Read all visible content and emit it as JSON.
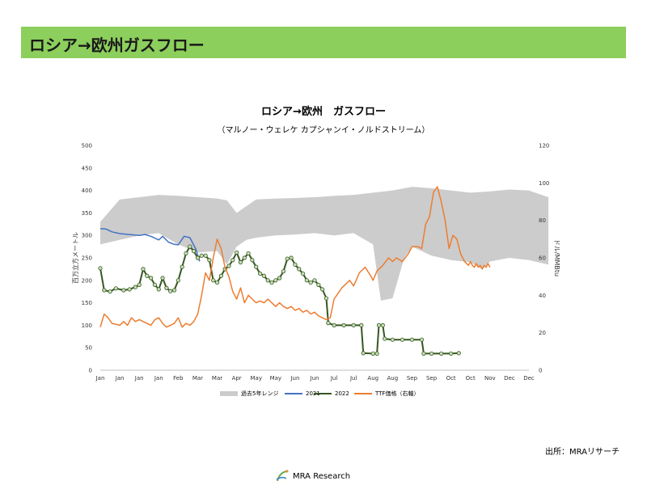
{
  "header": {
    "title": "ロシア→欧州ガスフロー"
  },
  "chart_data": {
    "type": "line",
    "title": "ロシア→欧州　ガスフロー",
    "subtitle": "（マルノー・ウェレケ カプシャンイ・ノルドストリーム）",
    "ylabel": "百万立方メートル",
    "y2label": "ドル/MMBtu",
    "ylim": [
      0,
      500
    ],
    "y_ticks": [
      0,
      50,
      100,
      150,
      200,
      250,
      300,
      350,
      400,
      450,
      500
    ],
    "y2lim": [
      0,
      120
    ],
    "y2_ticks": [
      0,
      20,
      40,
      60,
      80,
      100,
      120
    ],
    "x_tick_labels": [
      "Jan",
      "Jan",
      "Jan",
      "Jan",
      "Feb",
      "Mar",
      "Mar",
      "Apr",
      "May",
      "May",
      "Jun",
      "Jun",
      "Jul",
      "Jul",
      "Aug",
      "Aug",
      "Sep",
      "Sep",
      "Oct",
      "Oct",
      "Nov",
      "Dec",
      "Dec"
    ],
    "grid": false,
    "legend_position": "bottom",
    "range_band": {
      "name": "過去5年レンジ",
      "color": "#cccccc",
      "upper": [
        [
          0,
          330
        ],
        [
          1,
          380
        ],
        [
          2,
          385
        ],
        [
          3,
          390
        ],
        [
          4,
          388
        ],
        [
          5,
          385
        ],
        [
          6,
          382
        ],
        [
          6.5,
          378
        ],
        [
          7,
          350
        ],
        [
          7.5,
          365
        ],
        [
          8,
          380
        ],
        [
          9,
          382
        ],
        [
          10,
          383
        ],
        [
          11,
          385
        ],
        [
          12,
          388
        ],
        [
          13,
          390
        ],
        [
          14,
          395
        ],
        [
          15,
          400
        ],
        [
          16,
          408
        ],
        [
          17,
          405
        ],
        [
          18,
          400
        ],
        [
          19,
          395
        ],
        [
          20,
          398
        ],
        [
          21,
          402
        ],
        [
          22,
          400
        ],
        [
          23,
          385
        ]
      ],
      "lower": [
        [
          0,
          280
        ],
        [
          1,
          290
        ],
        [
          2,
          300
        ],
        [
          3,
          305
        ],
        [
          4,
          280
        ],
        [
          5,
          262
        ],
        [
          6,
          265
        ],
        [
          6.5,
          235
        ],
        [
          7,
          275
        ],
        [
          7.5,
          290
        ],
        [
          8,
          295
        ],
        [
          9,
          300
        ],
        [
          10,
          302
        ],
        [
          11,
          305
        ],
        [
          12,
          300
        ],
        [
          13,
          305
        ],
        [
          14,
          280
        ],
        [
          14.4,
          155
        ],
        [
          15,
          160
        ],
        [
          15.6,
          250
        ],
        [
          16,
          275
        ],
        [
          16.5,
          265
        ],
        [
          17,
          255
        ],
        [
          18,
          245
        ],
        [
          19,
          240
        ],
        [
          19.6,
          225
        ],
        [
          20,
          242
        ],
        [
          21,
          250
        ],
        [
          22,
          245
        ],
        [
          23,
          235
        ]
      ]
    },
    "series": [
      {
        "name": "2021",
        "axis": "left",
        "color": "#4472c4",
        "points": [
          [
            0,
            315
          ],
          [
            0.3,
            314
          ],
          [
            0.6,
            308
          ],
          [
            1,
            304
          ],
          [
            1.5,
            302
          ],
          [
            2,
            300
          ],
          [
            2.3,
            302
          ],
          [
            2.6,
            298
          ],
          [
            3,
            290
          ],
          [
            3.2,
            298
          ],
          [
            3.5,
            285
          ],
          [
            3.8,
            280
          ],
          [
            4,
            279
          ],
          [
            4.3,
            298
          ],
          [
            4.6,
            295
          ],
          [
            4.9,
            270
          ],
          [
            5.1,
            242
          ]
        ]
      },
      {
        "name": "2022",
        "axis": "left",
        "color": "#375623",
        "points": [
          [
            0,
            227
          ],
          [
            0.2,
            178
          ],
          [
            0.5,
            175
          ],
          [
            0.8,
            182
          ],
          [
            1.2,
            178
          ],
          [
            1.5,
            180
          ],
          [
            1.8,
            185
          ],
          [
            2,
            190
          ],
          [
            2.2,
            225
          ],
          [
            2.4,
            210
          ],
          [
            2.6,
            205
          ],
          [
            2.8,
            190
          ],
          [
            3,
            180
          ],
          [
            3.2,
            205
          ],
          [
            3.4,
            183
          ],
          [
            3.6,
            176
          ],
          [
            3.8,
            178
          ],
          [
            4,
            200
          ],
          [
            4.2,
            230
          ],
          [
            4.4,
            260
          ],
          [
            4.6,
            275
          ],
          [
            4.8,
            265
          ],
          [
            5,
            250
          ],
          [
            5.2,
            255
          ],
          [
            5.4,
            255
          ],
          [
            5.6,
            245
          ],
          [
            5.8,
            200
          ],
          [
            6,
            195
          ],
          [
            6.2,
            210
          ],
          [
            6.4,
            225
          ],
          [
            6.6,
            232
          ],
          [
            6.8,
            245
          ],
          [
            7,
            262
          ],
          [
            7.2,
            240
          ],
          [
            7.4,
            250
          ],
          [
            7.6,
            260
          ],
          [
            7.8,
            245
          ],
          [
            8,
            230
          ],
          [
            8.2,
            215
          ],
          [
            8.4,
            210
          ],
          [
            8.6,
            200
          ],
          [
            8.8,
            195
          ],
          [
            9,
            200
          ],
          [
            9.2,
            205
          ],
          [
            9.4,
            220
          ],
          [
            9.6,
            248
          ],
          [
            9.8,
            250
          ],
          [
            10,
            235
          ],
          [
            10.2,
            225
          ],
          [
            10.4,
            215
          ],
          [
            10.6,
            200
          ],
          [
            10.8,
            195
          ],
          [
            11,
            200
          ],
          [
            11.2,
            190
          ],
          [
            11.4,
            180
          ],
          [
            11.6,
            160
          ],
          [
            11.7,
            105
          ],
          [
            12,
            100
          ],
          [
            12.5,
            100
          ],
          [
            13,
            100
          ],
          [
            13.4,
            100
          ],
          [
            13.5,
            38
          ],
          [
            14,
            37
          ],
          [
            14.2,
            37
          ],
          [
            14.3,
            100
          ],
          [
            14.5,
            100
          ],
          [
            14.6,
            70
          ],
          [
            15,
            68
          ],
          [
            15.5,
            68
          ],
          [
            16,
            68
          ],
          [
            16.5,
            68
          ],
          [
            16.6,
            37
          ],
          [
            17,
            37
          ],
          [
            17.5,
            37
          ],
          [
            18,
            37
          ],
          [
            18.4,
            38
          ]
        ]
      },
      {
        "name": "TTF価格（右軸）",
        "axis": "right",
        "color": "#ed7d31",
        "points": [
          [
            0,
            23
          ],
          [
            0.2,
            30
          ],
          [
            0.4,
            28
          ],
          [
            0.6,
            25
          ],
          [
            1,
            24
          ],
          [
            1.2,
            26
          ],
          [
            1.4,
            24
          ],
          [
            1.6,
            28
          ],
          [
            1.8,
            26
          ],
          [
            2,
            27
          ],
          [
            2.2,
            26
          ],
          [
            2.4,
            25
          ],
          [
            2.6,
            24
          ],
          [
            2.8,
            27
          ],
          [
            3,
            28
          ],
          [
            3.2,
            25
          ],
          [
            3.4,
            23
          ],
          [
            3.6,
            24
          ],
          [
            3.8,
            25
          ],
          [
            4,
            28
          ],
          [
            4.2,
            23
          ],
          [
            4.4,
            25
          ],
          [
            4.6,
            24
          ],
          [
            4.8,
            26
          ],
          [
            5,
            30
          ],
          [
            5.2,
            40
          ],
          [
            5.4,
            52
          ],
          [
            5.6,
            48
          ],
          [
            5.8,
            60
          ],
          [
            6,
            70
          ],
          [
            6.2,
            65
          ],
          [
            6.4,
            55
          ],
          [
            6.6,
            50
          ],
          [
            6.8,
            42
          ],
          [
            7,
            38
          ],
          [
            7.2,
            44
          ],
          [
            7.4,
            36
          ],
          [
            7.6,
            40
          ],
          [
            7.8,
            38
          ],
          [
            8,
            36
          ],
          [
            8.2,
            37
          ],
          [
            8.4,
            36
          ],
          [
            8.6,
            38
          ],
          [
            8.8,
            36
          ],
          [
            9,
            34
          ],
          [
            9.2,
            36
          ],
          [
            9.4,
            34
          ],
          [
            9.6,
            33
          ],
          [
            9.8,
            34
          ],
          [
            10,
            32
          ],
          [
            10.2,
            33
          ],
          [
            10.4,
            31
          ],
          [
            10.6,
            32
          ],
          [
            10.8,
            30
          ],
          [
            11,
            31
          ],
          [
            11.2,
            29
          ],
          [
            11.4,
            28
          ],
          [
            11.6,
            27
          ],
          [
            11.8,
            28
          ],
          [
            12,
            38
          ],
          [
            12.4,
            44
          ],
          [
            12.8,
            48
          ],
          [
            13,
            45
          ],
          [
            13.3,
            52
          ],
          [
            13.6,
            55
          ],
          [
            13.9,
            50
          ],
          [
            14,
            48
          ],
          [
            14.2,
            53
          ],
          [
            14.5,
            56
          ],
          [
            14.8,
            60
          ],
          [
            15,
            58
          ],
          [
            15.2,
            60
          ],
          [
            15.5,
            58
          ],
          [
            15.8,
            62
          ],
          [
            16,
            66
          ],
          [
            16.3,
            66
          ],
          [
            16.5,
            65
          ],
          [
            16.7,
            78
          ],
          [
            16.9,
            82
          ],
          [
            17.1,
            95
          ],
          [
            17.3,
            98
          ],
          [
            17.5,
            90
          ],
          [
            17.7,
            80
          ],
          [
            17.9,
            65
          ],
          [
            18.1,
            72
          ],
          [
            18.3,
            70
          ],
          [
            18.5,
            62
          ],
          [
            18.7,
            58
          ],
          [
            18.9,
            56
          ],
          [
            19,
            58
          ],
          [
            19.1,
            56
          ],
          [
            19.2,
            55
          ],
          [
            19.3,
            57
          ],
          [
            19.4,
            55
          ],
          [
            19.5,
            56
          ],
          [
            19.6,
            54
          ],
          [
            19.7,
            56
          ],
          [
            19.8,
            55
          ],
          [
            19.9,
            57
          ],
          [
            20,
            55
          ]
        ]
      }
    ]
  },
  "source": "出所：MRAリサーチ",
  "logo": {
    "text": "MRA Research"
  }
}
